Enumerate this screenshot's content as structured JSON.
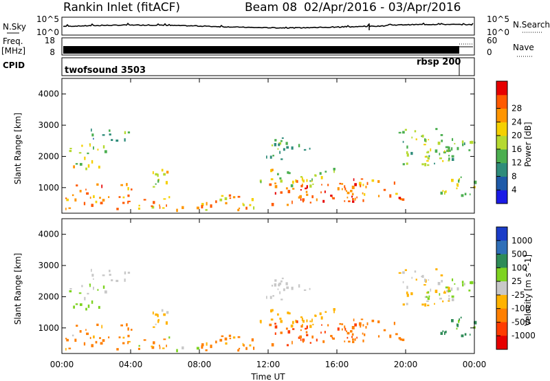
{
  "header": {
    "station": "Rankin Inlet (fitACF)",
    "beam": "Beam 08",
    "date_range": "02/Apr/2016 - 03/Apr/2016"
  },
  "panels": {
    "nsky": {
      "label": "N.Sky",
      "ticks": [
        "10^5",
        "10^0"
      ],
      "right_label": "N.Search",
      "right_ticks": [
        "10^5",
        "10^0"
      ]
    },
    "freq": {
      "label_line1": "Freq.",
      "label_line2": "[MHz]",
      "ticks": [
        "18",
        "8"
      ],
      "right_label": "Nave",
      "right_ticks": [
        "60",
        "0"
      ]
    },
    "cpid": {
      "label": "CPID",
      "modes": [
        "twofsound 3503",
        "rbsp 200"
      ]
    }
  },
  "chart_data": [
    {
      "type": "heatmap",
      "name": "power",
      "ylabel": "Slant Range [km]",
      "ylim": [
        180,
        4500
      ],
      "yticks": [
        "1000",
        "2000",
        "3000",
        "4000"
      ],
      "colorbar_label": "Power [dB]",
      "colorbar_ticks": [
        "4",
        "8",
        "12",
        "16",
        "20",
        "24",
        "28"
      ],
      "colors": [
        "#1a1ae6",
        "#1e5aa8",
        "#2e8c7a",
        "#4caf50",
        "#b5d930",
        "#f5d000",
        "#ff9500",
        "#ff5a00",
        "#e60000"
      ]
    },
    {
      "type": "heatmap",
      "name": "velocity",
      "ylabel": "Slant Range [km]",
      "ylim": [
        180,
        4500
      ],
      "yticks": [
        "1000",
        "2000",
        "3000",
        "4000"
      ],
      "xlabel": "Time UT",
      "xticks": [
        "00:00",
        "04:00",
        "08:00",
        "12:00",
        "16:00",
        "20:00",
        "00:00"
      ],
      "colorbar_label": "Velocity [m s^-1]",
      "colorbar_ticks": [
        "1000",
        "500",
        "100",
        "25",
        "-25",
        "-100",
        "-500",
        "-1000"
      ],
      "colors": [
        "#1a3cc8",
        "#2f6fb8",
        "#2e8b57",
        "#7ed321",
        "#c8c8c8",
        "#ffb300",
        "#ff7f00",
        "#ff3c00",
        "#e60000"
      ]
    }
  ]
}
